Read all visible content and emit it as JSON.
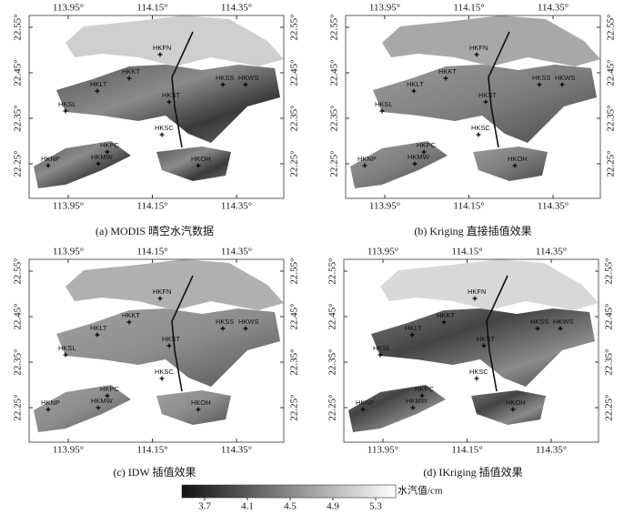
{
  "panels": [
    {
      "caption": "(a) MODIS 晴空水汽数据"
    },
    {
      "caption": "(b) Kriging 直接插值效果"
    },
    {
      "caption": "(c) IDW 插值效果"
    },
    {
      "caption": "(d) IKriging 插值效果"
    }
  ],
  "axes": {
    "lon_ticks": [
      {
        "value": 113.95,
        "label": "113.95°"
      },
      {
        "value": 114.15,
        "label": "114.15°"
      },
      {
        "value": 114.35,
        "label": "114.35°"
      }
    ],
    "lat_ticks": [
      {
        "value": 22.55,
        "label": "22.55°"
      },
      {
        "value": 22.45,
        "label": "22.45°"
      },
      {
        "value": 22.35,
        "label": "22.35°"
      },
      {
        "value": 22.25,
        "label": "22.25°"
      }
    ]
  },
  "stations": [
    "HKFN",
    "HKKT",
    "HKLT",
    "HKSL",
    "HKST",
    "HKSS",
    "HKWS",
    "HKSC",
    "HKPC",
    "HKMW",
    "HKNP",
    "HKOH"
  ],
  "colorbar": {
    "label": "水汽值/cm",
    "ticks": [
      3.7,
      4.1,
      4.5,
      4.9,
      5.3
    ]
  }
}
